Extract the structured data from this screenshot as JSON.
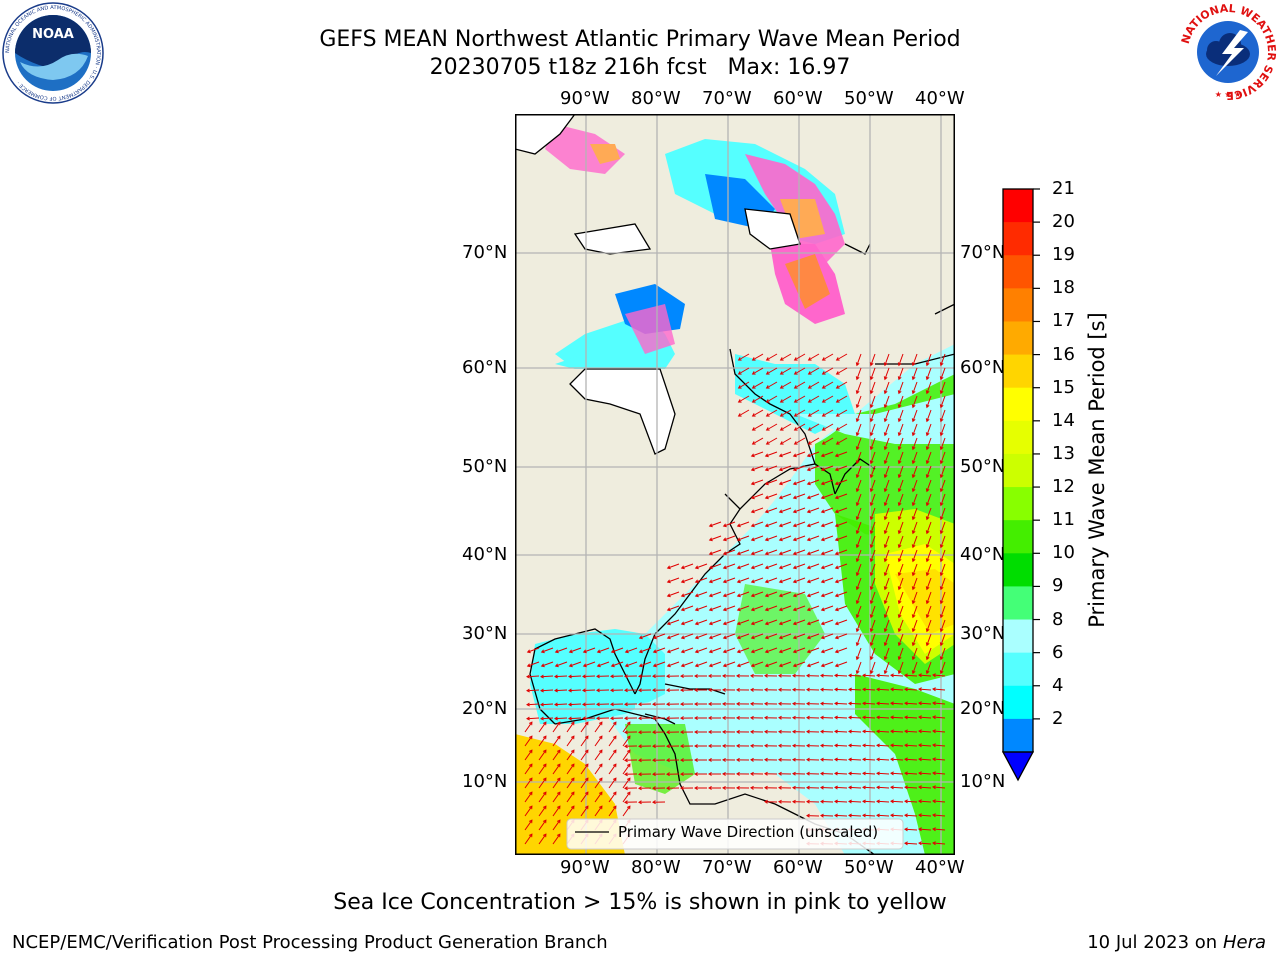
{
  "header": {
    "title_line1": "GEFS MEAN Northwest Atlantic Primary Wave Mean Period",
    "title_line2": "20230705 t18z 216h fcst   Max: 16.97"
  },
  "logos": {
    "left": {
      "name": "NOAA",
      "ring_text": "NATIONAL OCEANIC AND ATMOSPHERIC ADMINISTRATION · U.S. DEPARTMENT OF COMMERCE",
      "center_text": "NOAA"
    },
    "right": {
      "name": "National Weather Service",
      "ring_text": "NATIONAL WEATHER SERVICE"
    }
  },
  "map": {
    "lon_labels": [
      "90°W",
      "80°W",
      "70°W",
      "60°W",
      "50°W",
      "40°W"
    ],
    "lat_labels": [
      "70°N",
      "60°N",
      "50°N",
      "40°N",
      "30°N",
      "20°N",
      "10°N"
    ],
    "legend_label": "Primary Wave Direction (unscaled)",
    "colors": {
      "land": "#efedde",
      "coast": "#000000",
      "arrows": "#e00000",
      "grid": "#b4b4b4"
    }
  },
  "colorbar": {
    "label": "Primary Wave Mean Period [s]",
    "ticks": [
      "21",
      "20",
      "19",
      "18",
      "17",
      "16",
      "15",
      "14",
      "13",
      "12",
      "11",
      "10",
      "9",
      "8",
      "6",
      "4",
      "2"
    ],
    "colors": [
      "#ff0000",
      "#ff2b00",
      "#ff5500",
      "#ff8000",
      "#ffaa00",
      "#ffd500",
      "#ffff00",
      "#e6ff00",
      "#ccff00",
      "#88ff00",
      "#44ee00",
      "#00dd00",
      "#44ff77",
      "#aaffff",
      "#55ffff",
      "#00ffff",
      "#0088ff"
    ],
    "extend_color": "#0000ff"
  },
  "footer": {
    "note": "Sea Ice Concentration > 15% is shown in pink to yellow",
    "org": "NCEP/EMC/Verification Post Processing Product Generation Branch",
    "date": "10 Jul 2023 on ",
    "machine": "Hera"
  }
}
